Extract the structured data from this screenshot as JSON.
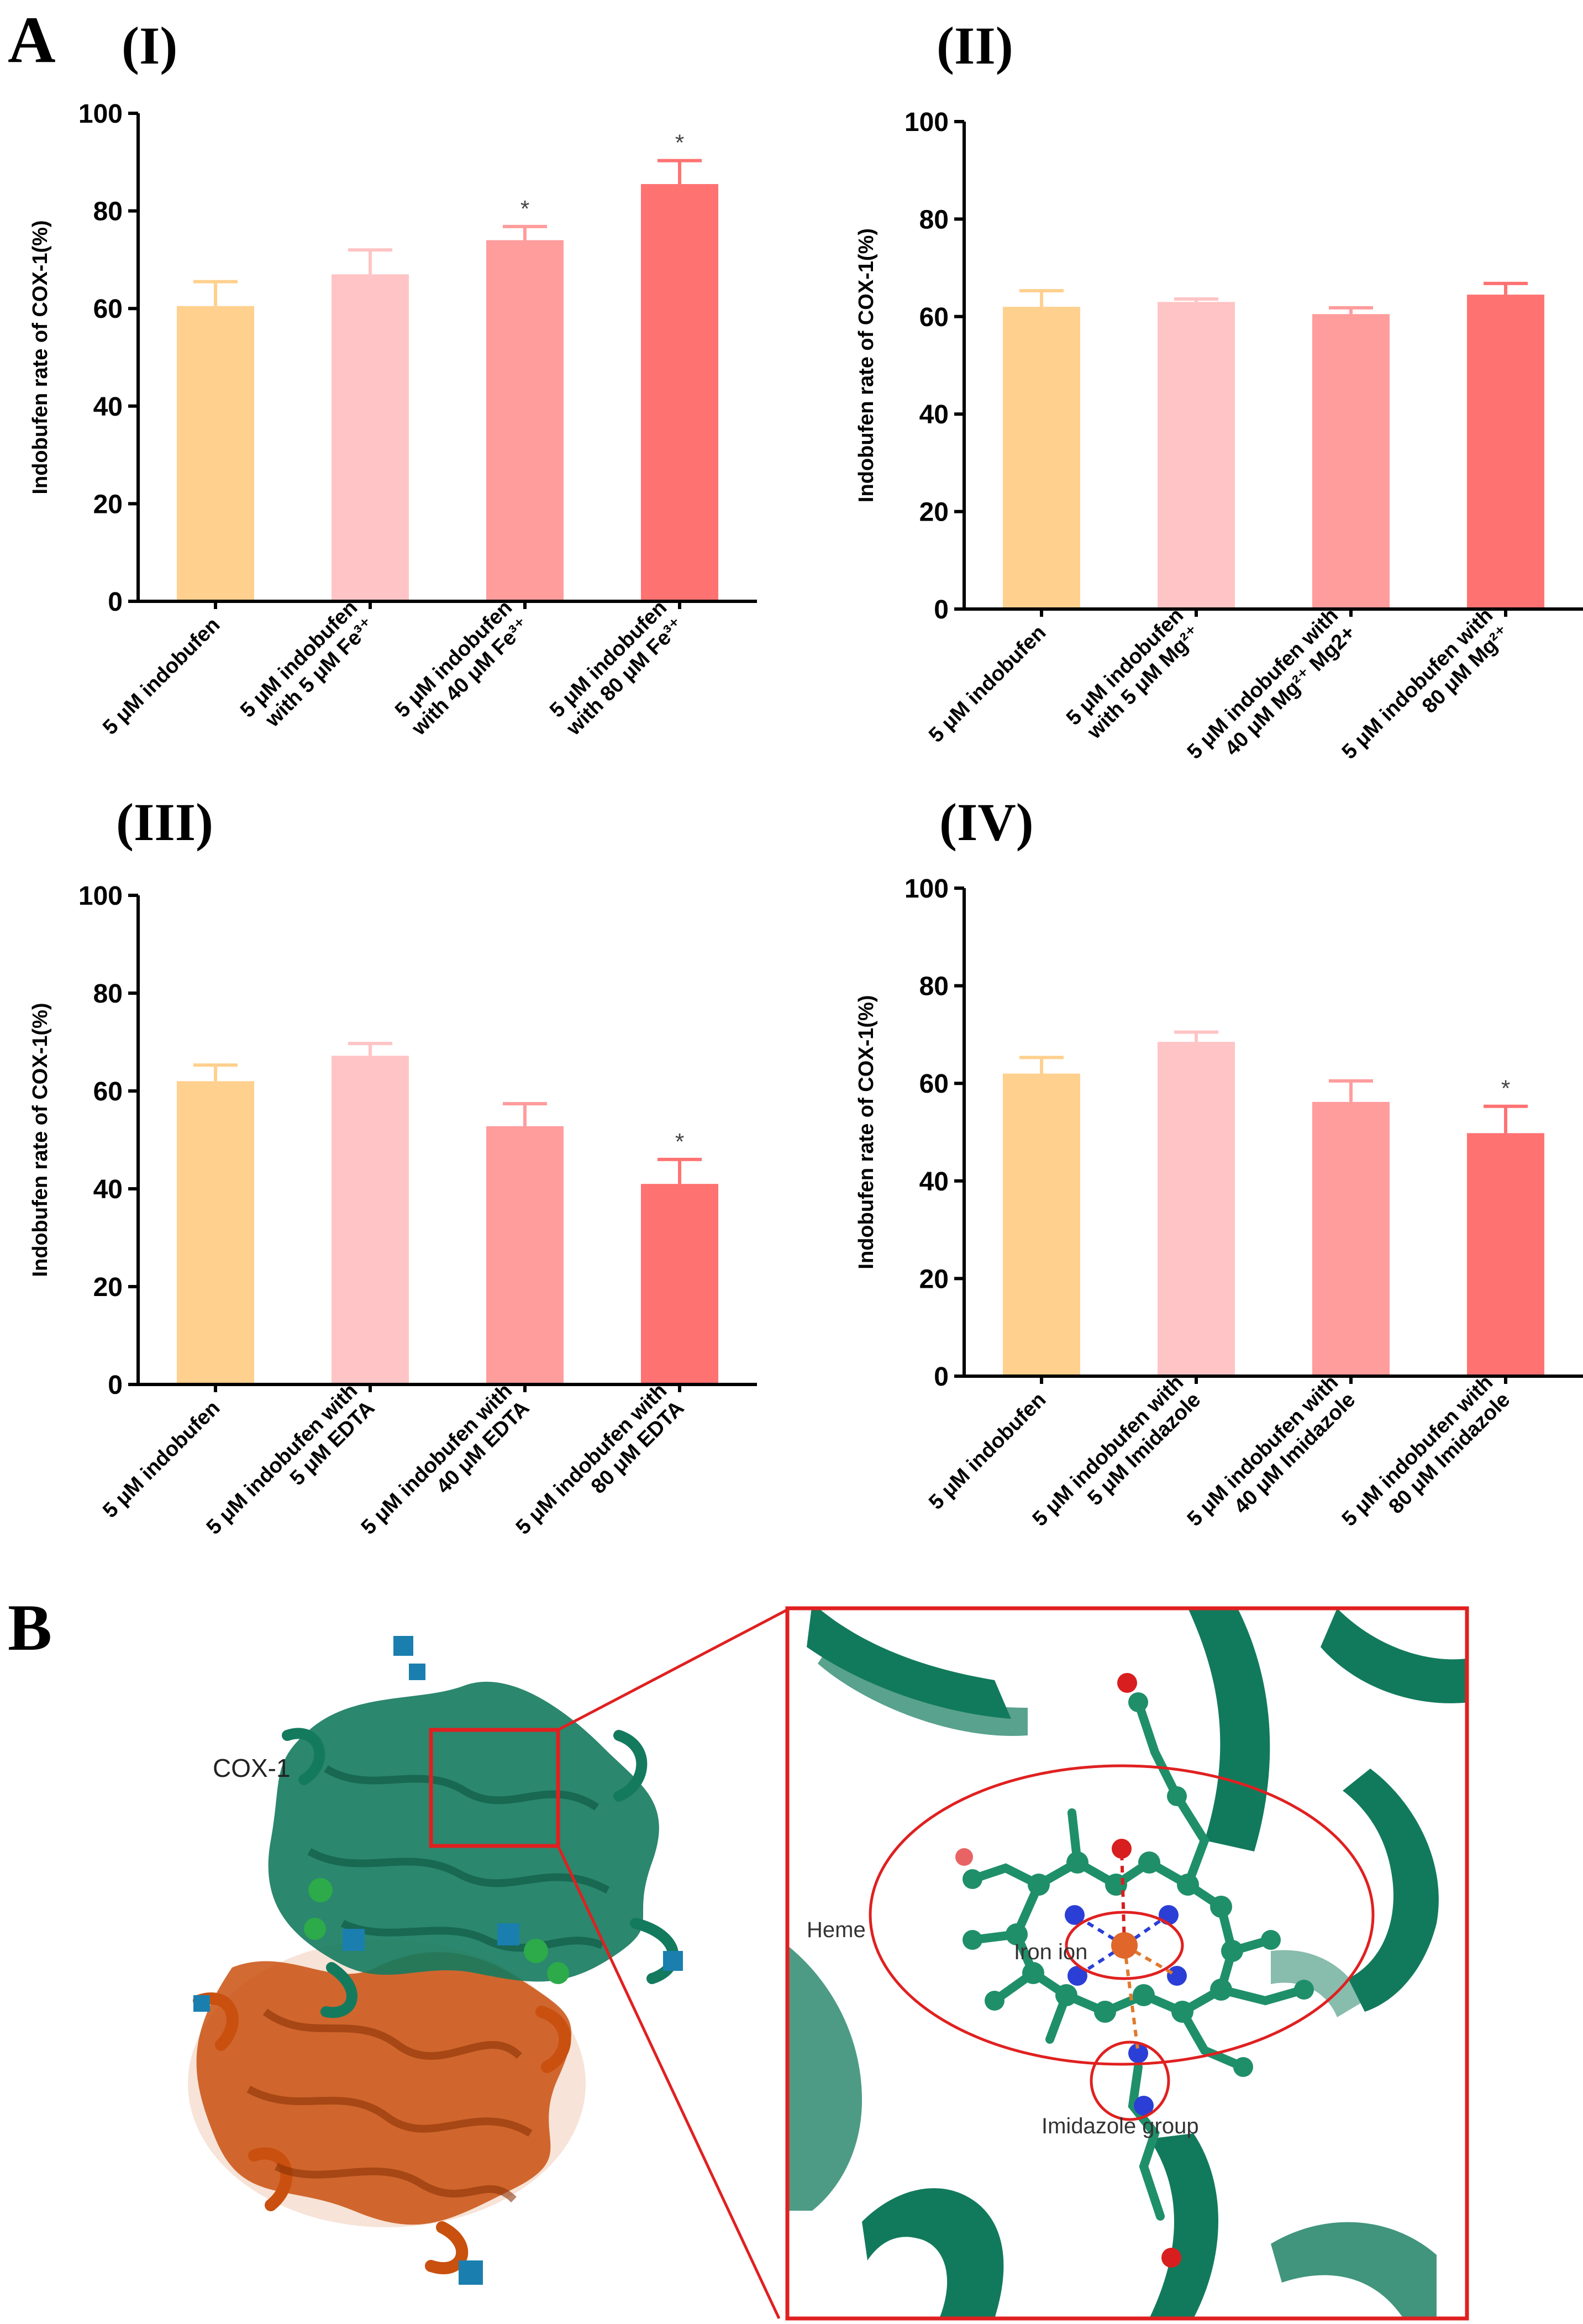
{
  "panels": {
    "a": "A",
    "b": "B"
  },
  "colors": {
    "bar1": "#FFD08E",
    "bar2": "#FFC4C5",
    "bar3": "#FF9C9C",
    "bar4": "#FF7272",
    "cox1_green": "#147A5E",
    "cox1_orange": "#C9500F",
    "highlight": "#E02020"
  },
  "chart_data": [
    {
      "type": "bar",
      "title": "(I)",
      "ylabel": "Indobufen rate of COX-1(%)",
      "xlabel": "",
      "ylim": [
        0,
        100
      ],
      "yticks": [
        0,
        20,
        40,
        60,
        80,
        100
      ],
      "categories": [
        [
          "5 μM indobufen"
        ],
        [
          "5 μM indobufen",
          "with 5 μM Fe³⁺"
        ],
        [
          "5 μM indobufen",
          "with 40 μM Fe³⁺"
        ],
        [
          "5 μM indobufen",
          "with 80 μM Fe³⁺"
        ]
      ],
      "values": [
        60.5,
        67,
        74,
        85.5
      ],
      "errors": [
        5,
        5,
        2.8,
        4.8
      ],
      "significance": [
        "",
        "",
        "*",
        "*"
      ]
    },
    {
      "type": "bar",
      "title": "(II)",
      "ylabel": "Indobufen rate of COX-1(%)",
      "xlabel": "",
      "ylim": [
        0,
        100
      ],
      "yticks": [
        0,
        20,
        40,
        60,
        80,
        100
      ],
      "categories": [
        [
          "5 μM indobufen"
        ],
        [
          "5 μM indobufen",
          "with 5 μM Mg²⁺"
        ],
        [
          "5 μM indobufen with",
          "40 μM Mg²⁺ Mg2+"
        ],
        [
          "5 μM indobufen with",
          "80 μM Mg²⁺"
        ]
      ],
      "values": [
        62,
        63,
        60.5,
        64.5
      ],
      "errors": [
        3.3,
        0.6,
        1.3,
        2.3
      ],
      "significance": [
        "",
        "",
        "",
        ""
      ]
    },
    {
      "type": "bar",
      "title": "(III)",
      "ylabel": "Indobufen rate of COX-1(%)",
      "xlabel": "",
      "ylim": [
        0,
        100
      ],
      "yticks": [
        0,
        20,
        40,
        60,
        80,
        100
      ],
      "categories": [
        [
          "5 μM indobufen"
        ],
        [
          "5 μM indobufen with",
          "5 μM EDTA"
        ],
        [
          "5 μM indobufen with",
          "40 μM EDTA"
        ],
        [
          "5 μM indobufen with",
          "80 μM EDTA"
        ]
      ],
      "values": [
        62,
        67.2,
        52.8,
        41
      ],
      "errors": [
        3.3,
        2.5,
        4.6,
        5
      ],
      "significance": [
        "",
        "",
        "",
        "*"
      ]
    },
    {
      "type": "bar",
      "title": "(IV)",
      "ylabel": "Indobufen rate of COX-1(%)",
      "xlabel": "",
      "ylim": [
        0,
        100
      ],
      "yticks": [
        0,
        20,
        40,
        60,
        80,
        100
      ],
      "categories": [
        [
          "5 μM indobufen"
        ],
        [
          "5 μM indobufen with",
          "5 μM Imidazole"
        ],
        [
          "5 μM indobufen with",
          "40 μM Imidazole"
        ],
        [
          "5 μM indobufen with",
          "80 μM Imidazole"
        ]
      ],
      "values": [
        62,
        68.5,
        56.2,
        49.8
      ],
      "errors": [
        3.3,
        2,
        4.3,
        5.5
      ],
      "significance": [
        "",
        "",
        "",
        "*"
      ]
    }
  ],
  "structure": {
    "protein_label": "COX-1",
    "heme_label": "Heme",
    "iron_label": "Iron ion",
    "imidazole_label": "Imidazole group"
  }
}
